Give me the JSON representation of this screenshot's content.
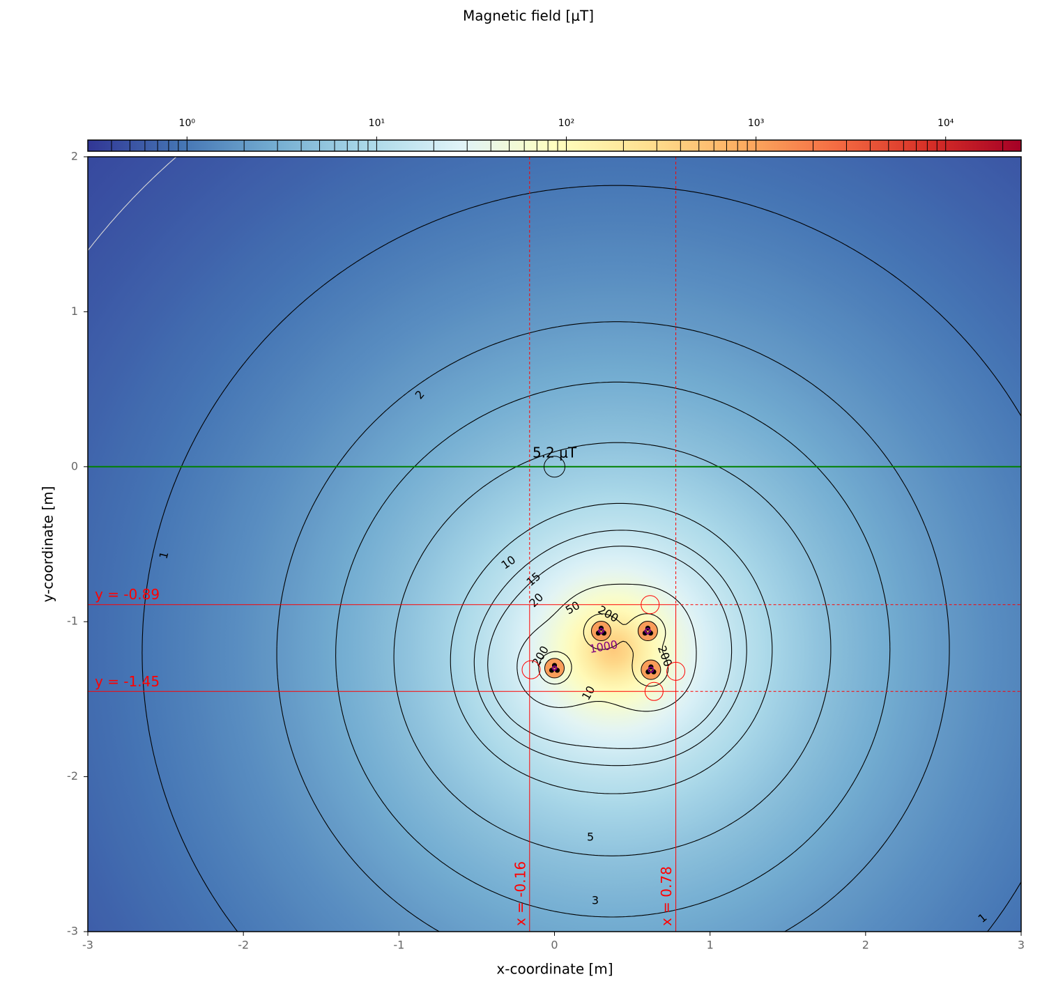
{
  "chart_data": {
    "type": "contour",
    "title": "Magnetic field [μT]",
    "xlabel": "x-coordinate [m]",
    "ylabel": "y-coordinate [m]",
    "xlim": [
      -3,
      3
    ],
    "ylim": [
      -3,
      2
    ],
    "xticks": [
      -3,
      -2,
      -1,
      0,
      1,
      2,
      3
    ],
    "yticks": [
      -3,
      -2,
      -1,
      0,
      1,
      2
    ],
    "colormap": [
      "#313695",
      "#4575b4",
      "#74add1",
      "#abd9e9",
      "#e0f3f8",
      "#ffffbf",
      "#fee090",
      "#fdae61",
      "#f46d43",
      "#d73027",
      "#a50026"
    ],
    "clim": [
      0.3,
      25000
    ],
    "log_scale": true,
    "cbar_ticks": [
      {
        "value": 1,
        "label": "10⁰"
      },
      {
        "value": 10,
        "label": "10¹"
      },
      {
        "value": 100,
        "label": "10²"
      },
      {
        "value": 1000,
        "label": "10³"
      },
      {
        "value": 10000,
        "label": "10⁴"
      }
    ],
    "cbar_minor_ticks": [
      0.4,
      0.5,
      0.6,
      0.7,
      0.8,
      0.9,
      2,
      3,
      4,
      5,
      6,
      7,
      8,
      9,
      20,
      30,
      40,
      50,
      60,
      70,
      80,
      90,
      200,
      300,
      400,
      500,
      600,
      700,
      800,
      900,
      2000,
      3000,
      4000,
      5000,
      6000,
      7000,
      8000,
      9000,
      20000
    ],
    "contour_levels": [
      0.5,
      1,
      2,
      3,
      5,
      10,
      15,
      20,
      50,
      200,
      1000
    ],
    "contour_colors": [
      "#d8d8d8",
      "#000000",
      "#000000",
      "#000000",
      "#000000",
      "#000000",
      "#000000",
      "#000000",
      "#000000",
      "#000000",
      "#800080"
    ],
    "conductors": [
      {
        "x": 0,
        "y": -1.3
      },
      {
        "x": 0.3,
        "y": -1.06
      },
      {
        "x": 0.6,
        "y": -1.06
      },
      {
        "x": 0.62,
        "y": -1.31
      }
    ],
    "conductor_color": "#f99d59",
    "envelope_circles": [
      {
        "x": -0.15,
        "y": -1.31
      },
      {
        "x": 0.615,
        "y": -0.89
      },
      {
        "x": 0.78,
        "y": -1.32
      },
      {
        "x": 0.64,
        "y": -1.45
      }
    ],
    "x_lines": [
      {
        "value": -0.16,
        "label": "x = -0.16"
      },
      {
        "value": 0.78,
        "label": "x = 0.78"
      }
    ],
    "y_lines": [
      {
        "value": -0.89,
        "label": "y = -0.89"
      },
      {
        "value": -1.45,
        "label": "y = -1.45"
      }
    ],
    "line_color": "#ff0000",
    "profile_line": {
      "y": 0,
      "color": "#008000"
    },
    "point": {
      "x": 0,
      "y": 0,
      "label": "5.2 μT"
    }
  }
}
